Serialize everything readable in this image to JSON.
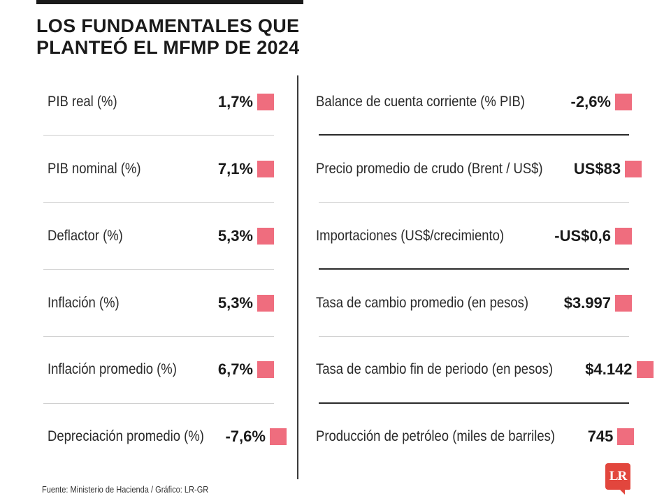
{
  "title": {
    "line1": "LOS FUNDAMENTALES QUE",
    "line2": "PLANTEÓ EL MFMP DE 2024"
  },
  "colors": {
    "marker": "#ef6d7e",
    "logo": "#e2463d",
    "text": "#1e1e1e"
  },
  "left_column": [
    {
      "label": "PIB real (%)",
      "value": "1,7%"
    },
    {
      "label": "PIB nominal (%)",
      "value": "7,1%"
    },
    {
      "label": "Deflactor (%)",
      "value": "5,3%"
    },
    {
      "label": "Inflación (%)",
      "value": "5,3%"
    },
    {
      "label": "Inflación promedio (%)",
      "value": "6,7%"
    },
    {
      "label": "Depreciación promedio (%)",
      "value": "-7,6%"
    }
  ],
  "right_column": [
    {
      "label": "Balance de cuenta corriente (% PIB)",
      "value": "-2,6%"
    },
    {
      "label": "Precio promedio de crudo (Brent / US$)",
      "value": "US$83"
    },
    {
      "label": "Importaciones (US$/crecimiento)",
      "value": "-US$0,6"
    },
    {
      "label": "Tasa de cambio promedio (en pesos)",
      "value": "$3.997"
    },
    {
      "label": "Tasa de cambio fin de periodo (en pesos)",
      "value": "$4.142"
    },
    {
      "label": "Producción de petróleo (miles de barriles)",
      "value": "745"
    }
  ],
  "source": "Fuente: Ministerio de Hacienda / Gráfico: LR-GR",
  "logo": {
    "text": "LR"
  }
}
